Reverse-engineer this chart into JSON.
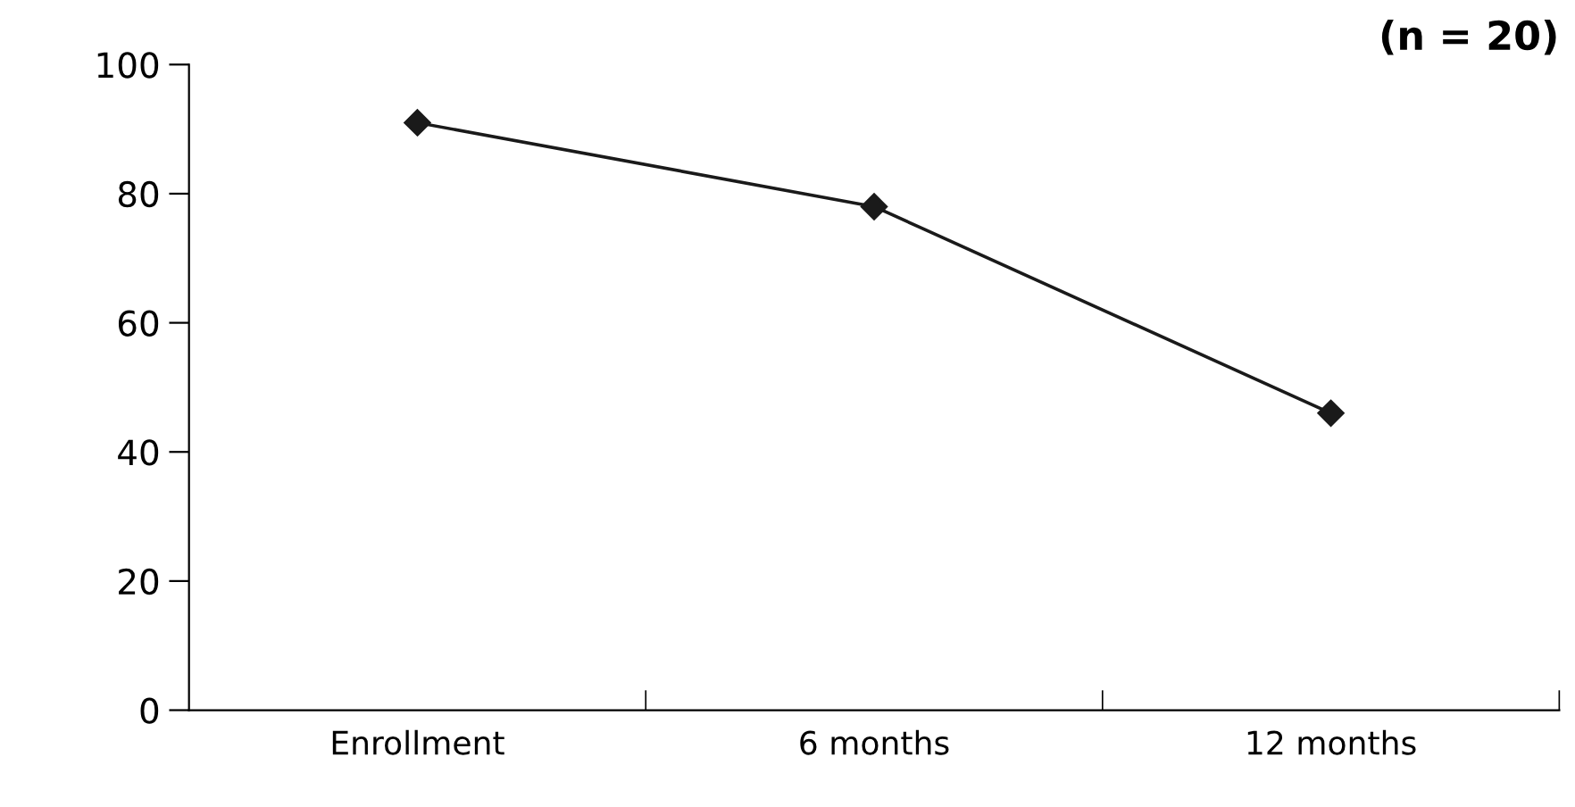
{
  "chart_data": {
    "type": "line",
    "title": "(n = 20)",
    "categories": [
      "Enrollment",
      "6 months",
      "12 months"
    ],
    "series": [
      {
        "color": "#1a1a1a",
        "values": [
          91,
          78,
          46
        ]
      }
    ],
    "ylim": [
      0,
      100
    ],
    "yticks": [
      0,
      20,
      40,
      60,
      80,
      100
    ],
    "marker": "diamond",
    "line_style": "solid",
    "grid": false,
    "legend": false
  }
}
